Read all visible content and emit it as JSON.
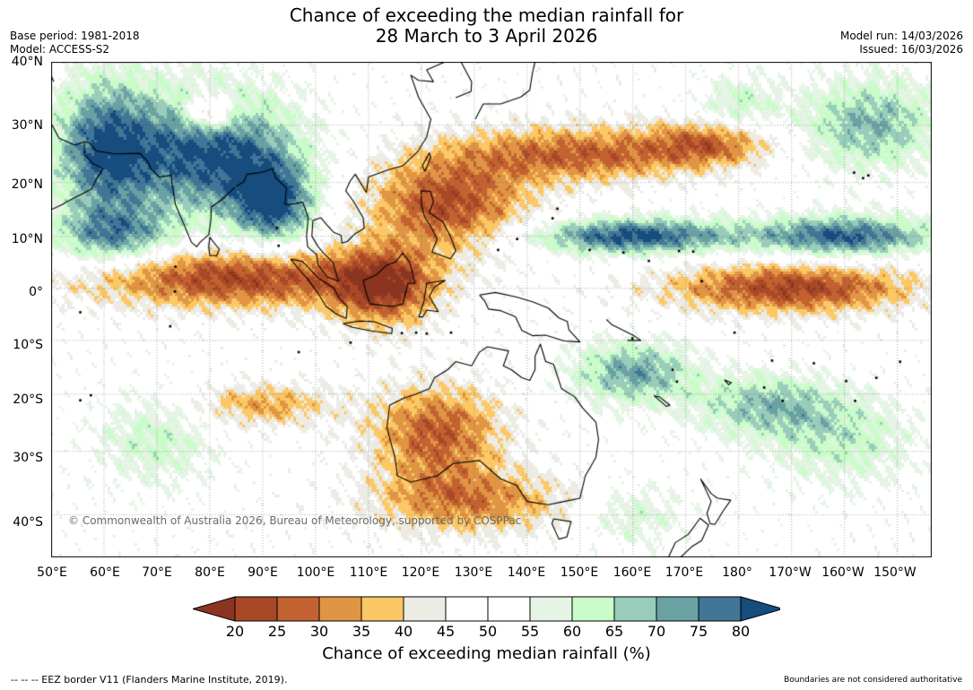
{
  "title": {
    "line1": "Chance of exceeding the median rainfall for",
    "line2": "28 March to 3 April 2026"
  },
  "meta": {
    "base_period": "Base period: 1981-2018",
    "model": "Model: ACCESS-S2",
    "model_run": "Model run: 14/03/2026",
    "issued": "Issued: 16/03/2026"
  },
  "map": {
    "lat_labels": [
      "40°N",
      "30°N",
      "20°N",
      "10°N",
      "0°",
      "10°S",
      "20°S",
      "30°S",
      "40°S"
    ],
    "lon_labels": [
      "50°E",
      "60°E",
      "70°E",
      "80°E",
      "90°E",
      "100°E",
      "110°E",
      "120°E",
      "130°E",
      "140°E",
      "150°E",
      "160°E",
      "170°E",
      "180°",
      "170°W",
      "160°W",
      "150°W"
    ],
    "extent": {
      "lon_min": 50,
      "lon_max": 216.5,
      "lat_min": -46,
      "lat_max": 40
    },
    "regions": [
      {
        "name": "north-india-wet",
        "lon": 80,
        "lat": 25,
        "rx": 17,
        "ry": 11,
        "prob": 82
      },
      {
        "name": "arabian-sea-wet",
        "lon": 60,
        "lat": 26,
        "rx": 10,
        "ry": 12,
        "prob": 78
      },
      {
        "name": "bay-of-bengal-wet",
        "lon": 92,
        "lat": 16,
        "rx": 8,
        "ry": 8,
        "prob": 80
      },
      {
        "name": "west-indian-ocean-wet",
        "lon": 62,
        "lat": 10,
        "rx": 12,
        "ry": 6,
        "prob": 74
      },
      {
        "name": "himalaya-dry",
        "lon": 80,
        "lat": 32,
        "rx": 5,
        "ry": 3,
        "prob": 25
      },
      {
        "name": "south-china-dry",
        "lon": 125,
        "lat": 16,
        "rx": 16,
        "ry": 9,
        "prob": 24
      },
      {
        "name": "north-pacific-dry-band",
        "lon": 150,
        "lat": 25,
        "rx": 24,
        "ry": 5,
        "prob": 27
      },
      {
        "name": "north-pacific-dry-east",
        "lon": 175,
        "lat": 27,
        "rx": 12,
        "ry": 4,
        "prob": 30
      },
      {
        "name": "equatorial-indian-dry",
        "lon": 85,
        "lat": 2,
        "rx": 30,
        "ry": 6,
        "prob": 22
      },
      {
        "name": "indonesia-dry",
        "lon": 113,
        "lat": 0,
        "rx": 10,
        "ry": 8,
        "prob": 24
      },
      {
        "name": "equatorial-pacific-dry",
        "lon": 190,
        "lat": 0,
        "rx": 24,
        "ry": 5,
        "prob": 22
      },
      {
        "name": "itcz-wet-west",
        "lon": 160,
        "lat": 10,
        "rx": 20,
        "ry": 3.5,
        "prob": 82
      },
      {
        "name": "itcz-wet-east",
        "lon": 200,
        "lat": 10,
        "rx": 18,
        "ry": 4,
        "prob": 80
      },
      {
        "name": "north-pacific-wet",
        "lon": 205,
        "lat": 30,
        "rx": 14,
        "ry": 8,
        "prob": 70
      },
      {
        "name": "central-pacific-moist",
        "lon": 180,
        "lat": 33,
        "rx": 8,
        "ry": 5,
        "prob": 62
      },
      {
        "name": "coral-sea-wet",
        "lon": 160,
        "lat": -16,
        "rx": 12,
        "ry": 6,
        "prob": 72
      },
      {
        "name": "southwest-pacific-wet",
        "lon": 185,
        "lat": -22,
        "rx": 14,
        "ry": 6,
        "prob": 68
      },
      {
        "name": "spcz-moist",
        "lon": 200,
        "lat": -28,
        "rx": 14,
        "ry": 8,
        "prob": 63
      },
      {
        "name": "australia-dry-core",
        "lon": 123,
        "lat": -27,
        "rx": 13,
        "ry": 9,
        "prob": 26
      },
      {
        "name": "australia-dry-south",
        "lon": 130,
        "lat": -38,
        "rx": 20,
        "ry": 5,
        "prob": 32
      },
      {
        "name": "indian-ocean-dry-south",
        "lon": 90,
        "lat": -22,
        "rx": 14,
        "ry": 4,
        "prob": 34
      },
      {
        "name": "south-indian-ocean-moist",
        "lon": 70,
        "lat": -28,
        "rx": 12,
        "ry": 8,
        "prob": 62
      },
      {
        "name": "tasman-moist",
        "lon": 160,
        "lat": -40,
        "rx": 10,
        "ry": 5,
        "prob": 60
      }
    ],
    "colors": {
      "ocean_background": "#f4f4f2",
      "coastline": "#000000",
      "grid": "#555555"
    }
  },
  "colorbar": {
    "ticks": [
      "20",
      "25",
      "30",
      "35",
      "40",
      "45",
      "50",
      "55",
      "60",
      "65",
      "70",
      "75",
      "80"
    ],
    "under_color": "#8b3520",
    "over_color": "#164c7e",
    "bin_colors": [
      "#a84826",
      "#c36231",
      "#df9544",
      "#fcc765",
      "#ecebe4",
      "#ffffff",
      "#ffffff",
      "#e6f4e6",
      "#c9fcc8",
      "#99ccbb",
      "#6aa2a3",
      "#417696"
    ],
    "title": "Chance of exceeding median rainfall (%)"
  },
  "copyright": "© Commonwealth of Australia 2026, Bureau of Meteorology, supported by COSPPac",
  "footer": {
    "eez_note": "--  --  -- EEZ border V11 (Flanders Marine Institute, 2019).",
    "boundary_note": "Boundaries are not considered authoritative"
  }
}
